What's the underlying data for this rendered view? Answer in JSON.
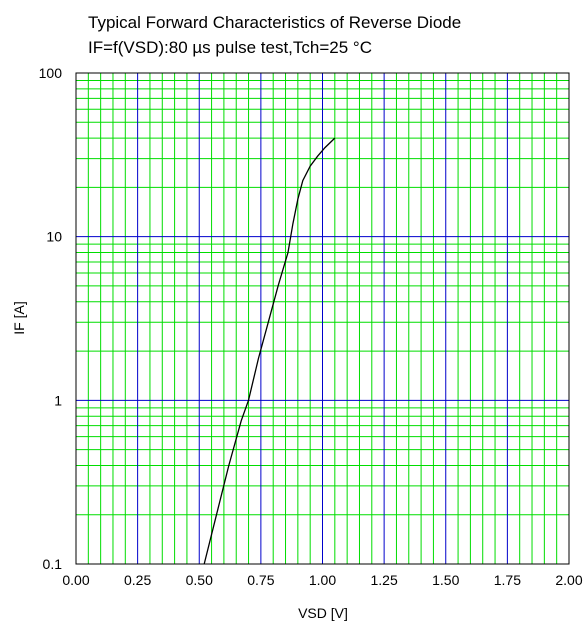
{
  "chart_data": {
    "type": "line",
    "title": "Typical Forward Characteristics of Reverse Diode",
    "subtitle": "IF=f(VSD):80 µs pulse test,Tch=25 °C",
    "xlabel": "VSD [V]",
    "ylabel": "IF [A]",
    "xlim": [
      0,
      2
    ],
    "ylim": [
      0.1,
      100
    ],
    "yscale": "log",
    "grid": true,
    "x_ticks": [
      "0.00",
      "0.25",
      "0.50",
      "0.75",
      "1.00",
      "1.25",
      "1.50",
      "1.75",
      "2.00"
    ],
    "y_ticks": [
      "0.1",
      "1",
      "10",
      "100"
    ],
    "colors": {
      "major_grid": "#0000cc",
      "minor_grid": "#00dd00",
      "curve": "#000000"
    },
    "series": [
      {
        "x": [
          0.52,
          0.57,
          0.62,
          0.67,
          0.7,
          0.74,
          0.78,
          0.82,
          0.86,
          0.88,
          0.9,
          0.92,
          0.95,
          0.98,
          1.01,
          1.05
        ],
        "y": [
          0.1,
          0.2,
          0.4,
          0.75,
          1.0,
          1.8,
          3.0,
          5.0,
          8.0,
          12.0,
          17.0,
          22.0,
          27.0,
          31.0,
          35.0,
          40.0
        ]
      }
    ]
  }
}
